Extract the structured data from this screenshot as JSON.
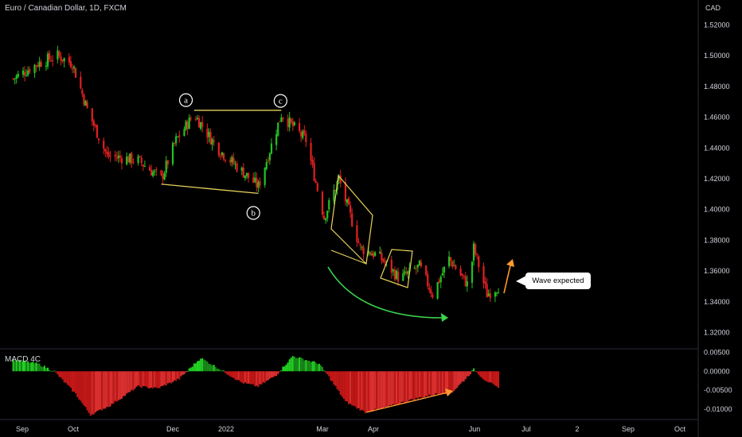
{
  "header": {
    "symbol_title": "Euro / Canadian Dollar, 1D, FXCM",
    "currency": "CAD"
  },
  "macd": {
    "title": "MACD 4C"
  },
  "callout": {
    "text": "Wave expected"
  },
  "wave_labels": [
    "a",
    "b",
    "c"
  ],
  "colors": {
    "background": "#000000",
    "up_candle": "#26a69a",
    "bull": "#22c322",
    "bear": "#e02020",
    "pattern_line": "#e7d15a",
    "arrow": "#ff9a2e",
    "curve": "#3ad44b",
    "grid": "#2a2e39",
    "text": "#d1d4dc"
  },
  "chart_data": [
    {
      "type": "candlestick",
      "title": "Euro / Canadian Dollar, 1D, FXCM",
      "ylabel": "CAD",
      "ylim": [
        1.31,
        1.53
      ],
      "yticks": [
        "1.52000",
        "1.50000",
        "1.48000",
        "1.46000",
        "1.44000",
        "1.42000",
        "1.40000",
        "1.38000",
        "1.36000",
        "1.34000",
        "1.32000"
      ],
      "xticks": [
        "Sep",
        "Oct",
        "Dec",
        "2022",
        "Mar",
        "Apr",
        "Jun",
        "Jul",
        "2",
        "Sep",
        "Oct"
      ],
      "grid": false,
      "close_path": [
        {
          "x": "Aug 26",
          "y": 1.485
        },
        {
          "x": "Sep 10",
          "y": 1.495
        },
        {
          "x": "Sep 22",
          "y": 1.5
        },
        {
          "x": "Oct 1",
          "y": 1.495
        },
        {
          "x": "Oct 10",
          "y": 1.465
        },
        {
          "x": "Oct 22",
          "y": 1.435
        },
        {
          "x": "Nov 10",
          "y": 1.432
        },
        {
          "x": "Nov 24",
          "y": 1.42
        },
        {
          "x": "Dec 3",
          "y": 1.445
        },
        {
          "x": "Dec 14",
          "y": 1.462
        },
        {
          "x": "Dec 28",
          "y": 1.44
        },
        {
          "x": "Jan 12",
          "y": 1.425
        },
        {
          "x": "Jan 22",
          "y": 1.415
        },
        {
          "x": "Feb 5",
          "y": 1.462
        },
        {
          "x": "Feb 20",
          "y": 1.445
        },
        {
          "x": "Mar 3",
          "y": 1.395
        },
        {
          "x": "Mar 12",
          "y": 1.42
        },
        {
          "x": "Mar 25",
          "y": 1.375
        },
        {
          "x": "Apr 5",
          "y": 1.37
        },
        {
          "x": "Apr 18",
          "y": 1.355
        },
        {
          "x": "Apr 30",
          "y": 1.363
        },
        {
          "x": "May 8",
          "y": 1.345
        },
        {
          "x": "May 18",
          "y": 1.368
        },
        {
          "x": "May 30",
          "y": 1.35
        },
        {
          "x": "Jun 2",
          "y": 1.375
        },
        {
          "x": "Jun 10",
          "y": 1.345
        },
        {
          "x": "Jun 17",
          "y": 1.35
        }
      ],
      "annotations": [
        "a",
        "b",
        "c",
        "Wave expected"
      ]
    },
    {
      "type": "bar",
      "title": "MACD 4C",
      "ylim": [
        -0.0125,
        0.0055
      ],
      "yticks": [
        "0.00500",
        "0.00000",
        "-0.00500",
        "-0.01000"
      ],
      "histogram_path": [
        {
          "x": "Aug 26",
          "y": 0.003
        },
        {
          "x": "Sep 10",
          "y": 0.002
        },
        {
          "x": "Sep 20",
          "y": 0.0
        },
        {
          "x": "Oct 3",
          "y": -0.006
        },
        {
          "x": "Oct 12",
          "y": -0.0115
        },
        {
          "x": "Oct 24",
          "y": -0.009
        },
        {
          "x": "Nov 10",
          "y": -0.004
        },
        {
          "x": "Nov 22",
          "y": -0.0045
        },
        {
          "x": "Dec 5",
          "y": -0.002
        },
        {
          "x": "Dec 12",
          "y": 0.001
        },
        {
          "x": "Dec 18",
          "y": 0.0035
        },
        {
          "x": "Dec 28",
          "y": 0.001
        },
        {
          "x": "Jan 12",
          "y": -0.003
        },
        {
          "x": "Jan 22",
          "y": -0.004
        },
        {
          "x": "Feb 2",
          "y": -0.001
        },
        {
          "x": "Feb 12",
          "y": 0.004
        },
        {
          "x": "Feb 28",
          "y": 0.002
        },
        {
          "x": "Mar 6",
          "y": -0.0015
        },
        {
          "x": "Mar 16",
          "y": -0.008
        },
        {
          "x": "Mar 28",
          "y": -0.0108
        },
        {
          "x": "Apr 10",
          "y": -0.0095
        },
        {
          "x": "Apr 25",
          "y": -0.0075
        },
        {
          "x": "May 10",
          "y": -0.006
        },
        {
          "x": "May 20",
          "y": -0.0055
        },
        {
          "x": "May 28",
          "y": -0.002
        },
        {
          "x": "Jun 2",
          "y": 0.0005
        },
        {
          "x": "Jun 8",
          "y": -0.002
        },
        {
          "x": "Jun 17",
          "y": -0.0045
        }
      ]
    }
  ]
}
